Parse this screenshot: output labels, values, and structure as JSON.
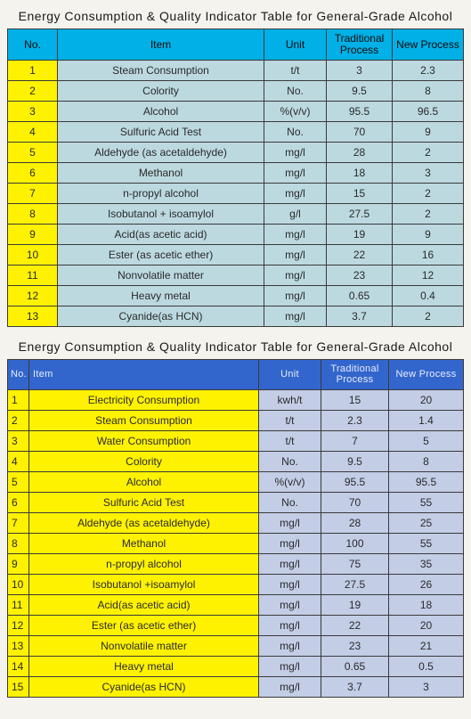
{
  "title1": "Energy Consumption & Quality Indicator Table for General-Grade Alcohol",
  "title2": "Energy Consumption & Quality Indicator Table for General-Grade Alcohol",
  "headers": {
    "no": "No.",
    "item": "Item",
    "unit": "Unit",
    "trad": "Traditional Process",
    "newp": "New Process"
  },
  "colors": {
    "header1_bg": "#00b0e6",
    "header2_bg": "#3366cc",
    "yellow": "#fff200",
    "body1": "#bcd9e0",
    "body2": "#c3cde6"
  },
  "t1": [
    {
      "no": "1",
      "item": "Steam Consumption",
      "unit": "t/t",
      "trad": "3",
      "newp": "2.3"
    },
    {
      "no": "2",
      "item": "Colority",
      "unit": "No.",
      "trad": "9.5",
      "newp": "8"
    },
    {
      "no": "3",
      "item": "Alcohol",
      "unit": "%(v/v)",
      "trad": "95.5",
      "newp": "96.5"
    },
    {
      "no": "4",
      "item": "Sulfuric Acid Test",
      "unit": "No.",
      "trad": "70",
      "newp": "9"
    },
    {
      "no": "5",
      "item": "Aldehyde (as acetaldehyde)",
      "unit": "mg/l",
      "trad": "28",
      "newp": "2"
    },
    {
      "no": "6",
      "item": "Methanol",
      "unit": "mg/l",
      "trad": "18",
      "newp": "3"
    },
    {
      "no": "7",
      "item": "n-propyl alcohol",
      "unit": "mg/l",
      "trad": "15",
      "newp": "2"
    },
    {
      "no": "8",
      "item": "Isobutanol + isoamylol",
      "unit": "g/l",
      "trad": "27.5",
      "newp": "2"
    },
    {
      "no": "9",
      "item": "Acid(as acetic acid)",
      "unit": "mg/l",
      "trad": "19",
      "newp": "9"
    },
    {
      "no": "10",
      "item": "Ester (as acetic ether)",
      "unit": "mg/l",
      "trad": "22",
      "newp": "16"
    },
    {
      "no": "11",
      "item": "Nonvolatile matter",
      "unit": "mg/l",
      "trad": "23",
      "newp": "12"
    },
    {
      "no": "12",
      "item": "Heavy metal",
      "unit": "mg/l",
      "trad": "0.65",
      "newp": "0.4"
    },
    {
      "no": "13",
      "item": "Cyanide(as HCN)",
      "unit": "mg/l",
      "trad": "3.7",
      "newp": "2"
    }
  ],
  "t2": [
    {
      "no": "1",
      "item": "Electricity Consumption",
      "unit": "kwh/t",
      "trad": "15",
      "newp": "20"
    },
    {
      "no": "2",
      "item": "Steam Consumption",
      "unit": "t/t",
      "trad": "2.3",
      "newp": "1.4"
    },
    {
      "no": "3",
      "item": "Water Consumption",
      "unit": "t/t",
      "trad": "7",
      "newp": "5"
    },
    {
      "no": "4",
      "item": "Colority",
      "unit": "No.",
      "trad": "9.5",
      "newp": "8"
    },
    {
      "no": "5",
      "item": "Alcohol",
      "unit": "%(v/v)",
      "trad": "95.5",
      "newp": "95.5"
    },
    {
      "no": "6",
      "item": "Sulfuric Acid Test",
      "unit": "No.",
      "trad": "70",
      "newp": "55"
    },
    {
      "no": "7",
      "item": "Aldehyde (as acetaldehyde)",
      "unit": "mg/l",
      "trad": "28",
      "newp": "25"
    },
    {
      "no": "8",
      "item": "Methanol",
      "unit": "mg/l",
      "trad": "100",
      "newp": "55"
    },
    {
      "no": "9",
      "item": "n-propyl alcohol",
      "unit": "mg/l",
      "trad": "75",
      "newp": "35"
    },
    {
      "no": "10",
      "item": "Isobutanol +isoamylol",
      "unit": "mg/l",
      "trad": "27.5",
      "newp": "26"
    },
    {
      "no": "11",
      "item": "Acid(as acetic acid)",
      "unit": "mg/l",
      "trad": "19",
      "newp": "18"
    },
    {
      "no": "12",
      "item": "Ester (as acetic ether)",
      "unit": "mg/l",
      "trad": "22",
      "newp": "20"
    },
    {
      "no": "13",
      "item": "Nonvolatile matter",
      "unit": "mg/l",
      "trad": "23",
      "newp": "21"
    },
    {
      "no": "14",
      "item": "Heavy metal",
      "unit": "mg/l",
      "trad": "0.65",
      "newp": "0.5"
    },
    {
      "no": "15",
      "item": "Cyanide(as HCN)",
      "unit": "mg/l",
      "trad": "3.7",
      "newp": "3"
    }
  ]
}
